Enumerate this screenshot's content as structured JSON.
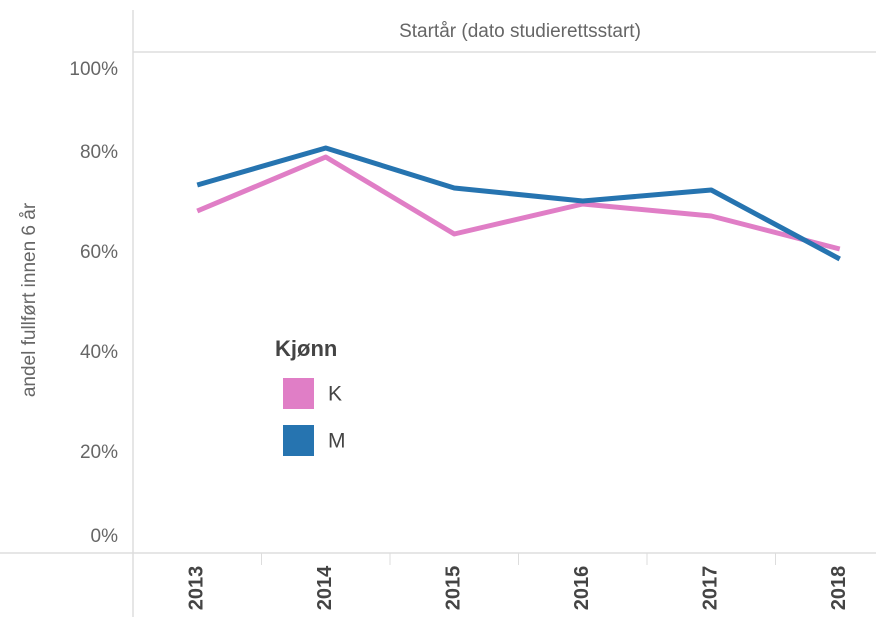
{
  "chart_data": {
    "type": "line",
    "x_label": "Startår (dato studierettsstart)",
    "y_label": "andel fullført innen 6 år",
    "legend_title": "Kjønn",
    "categories": [
      "2013",
      "2014",
      "2015",
      "2016",
      "2017",
      "2018"
    ],
    "series": [
      {
        "name": "K",
        "color": "#e07ec6",
        "values": [
          68.4,
          79.2,
          63.8,
          69.8,
          67.4,
          60.8
        ]
      },
      {
        "name": "M",
        "color": "#2674b0",
        "values": [
          73.6,
          81.0,
          73.0,
          70.4,
          72.6,
          58.8
        ]
      }
    ],
    "ylim": [
      0,
      100
    ],
    "yticks": [
      {
        "value": 0,
        "label": "0%"
      },
      {
        "value": 20,
        "label": "20%"
      },
      {
        "value": 40,
        "label": "40%"
      },
      {
        "value": 60,
        "label": "60%"
      },
      {
        "value": 80,
        "label": "80%"
      },
      {
        "value": 100,
        "label": "100%"
      }
    ],
    "legend": "left"
  }
}
